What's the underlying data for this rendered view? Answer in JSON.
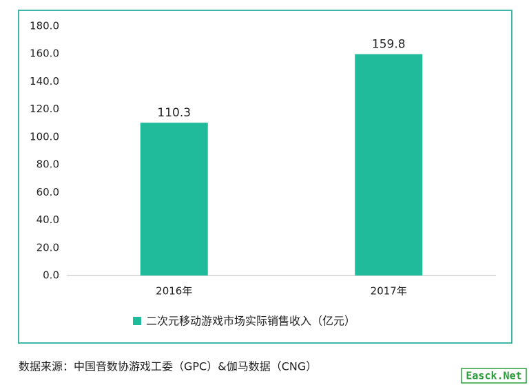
{
  "chart_data": {
    "type": "bar",
    "categories": [
      "2016年",
      "2017年"
    ],
    "series": [
      {
        "name": "二次元移动游戏市场实际销售收入（亿元）",
        "color": "#1fbb9a",
        "values": [
          110.3,
          159.8
        ]
      }
    ],
    "ylim": [
      0,
      180
    ],
    "yticks": [
      {
        "value": 0,
        "label": "0.0"
      },
      {
        "value": 20,
        "label": "20.0"
      },
      {
        "value": 40,
        "label": "40.0"
      },
      {
        "value": 60,
        "label": "60.0"
      },
      {
        "value": 80,
        "label": "80.0"
      },
      {
        "value": 100,
        "label": "100.0"
      },
      {
        "value": 120,
        "label": "120.0"
      },
      {
        "value": 140,
        "label": "140.0"
      },
      {
        "value": 160,
        "label": "160.0"
      },
      {
        "value": 180,
        "label": "180.0"
      }
    ],
    "grid": false,
    "legend": "bottom"
  },
  "source": "数据来源：中国音数协游戏工委（GPC）&伽马数据（CNG）",
  "watermark": "Easck.Net"
}
